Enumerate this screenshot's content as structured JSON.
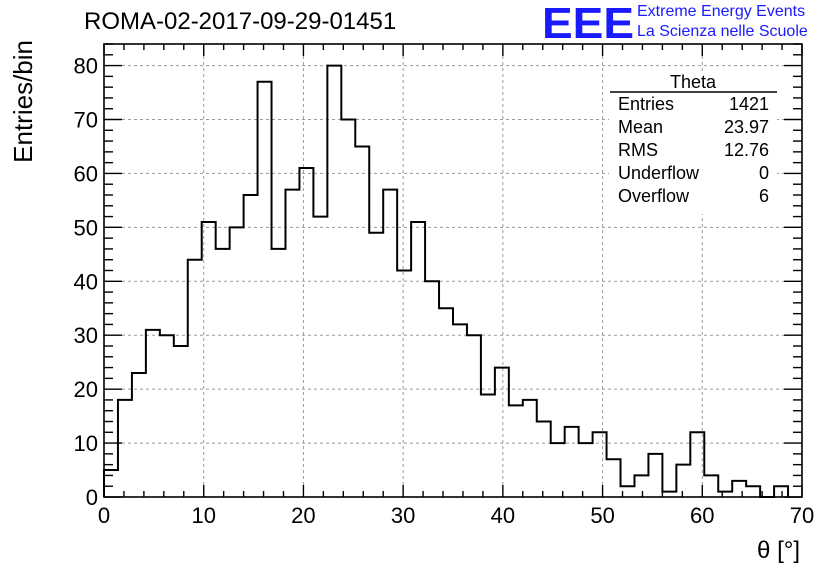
{
  "header": {
    "title": "ROMA-02-2017-09-29-01451",
    "logo_mark": "EEE",
    "logo_line1": "Extreme Energy Events",
    "logo_line2": "La Scienza nelle Scuole"
  },
  "stats_box": {
    "title": "Theta",
    "rows": [
      {
        "label": "Entries",
        "value": "1421"
      },
      {
        "label": "Mean",
        "value": "23.97"
      },
      {
        "label": "RMS",
        "value": "12.76"
      },
      {
        "label": "Underflow",
        "value": "0"
      },
      {
        "label": "Overflow",
        "value": "6"
      }
    ]
  },
  "colors": {
    "line": "#000000",
    "grid": "#9a9a9a",
    "logo": "#1a1aff"
  },
  "chart_data": {
    "type": "bar",
    "style": "step-histogram",
    "bin_width": 1.4,
    "bin_start": 0,
    "values": [
      5,
      18,
      23,
      31,
      30,
      28,
      44,
      51,
      46,
      50,
      56,
      77,
      46,
      57,
      61,
      52,
      80,
      70,
      65,
      49,
      57,
      42,
      51,
      40,
      35,
      32,
      30,
      19,
      24,
      17,
      18,
      14,
      10,
      13,
      10,
      12,
      7,
      2,
      4,
      8,
      1,
      6,
      12,
      4,
      1,
      3,
      2,
      0,
      2
    ],
    "xlabel": "θ [°]",
    "ylabel": "Entries/bin",
    "xlim": [
      0,
      70
    ],
    "ylim": [
      0,
      84
    ],
    "xticks": [
      0,
      10,
      20,
      30,
      40,
      50,
      60,
      70
    ],
    "yticks": [
      0,
      10,
      20,
      30,
      40,
      50,
      60,
      70,
      80
    ],
    "grid": true,
    "legend": "top-right"
  }
}
